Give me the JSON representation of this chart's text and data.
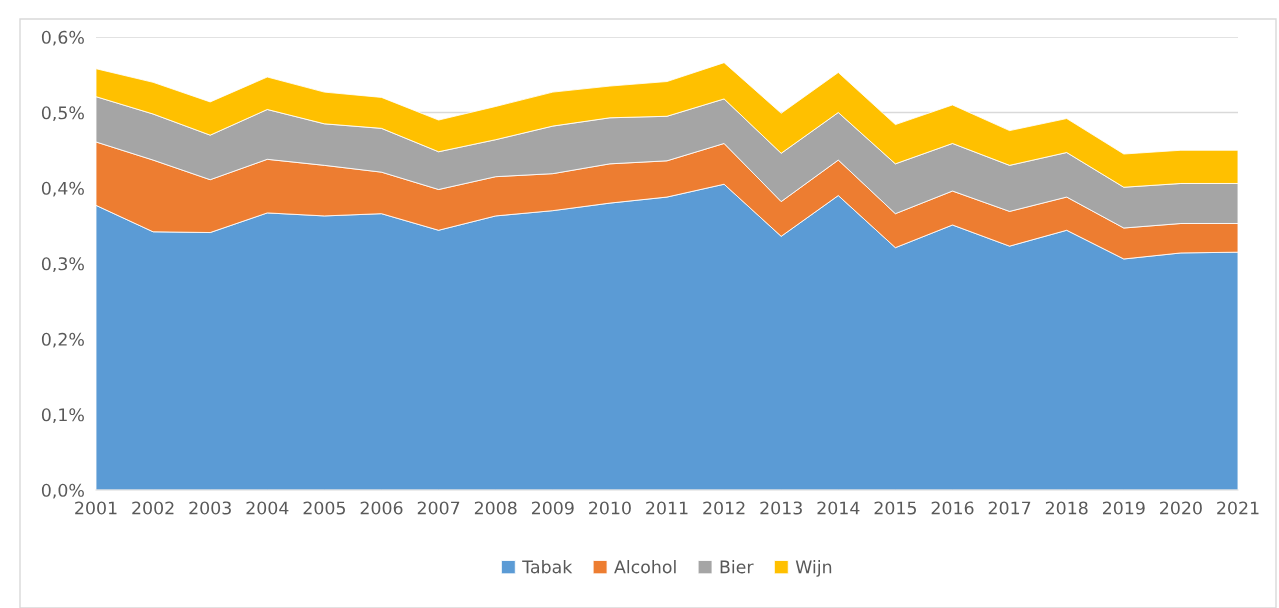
{
  "chart_data": {
    "type": "area",
    "stacked": true,
    "categories": [
      "2001",
      "2002",
      "2003",
      "2004",
      "2005",
      "2006",
      "2007",
      "2008",
      "2009",
      "2010",
      "2011",
      "2012",
      "2013",
      "2014",
      "2015",
      "2016",
      "2017",
      "2018",
      "2019",
      "2020",
      "2021"
    ],
    "series": [
      {
        "name": "Tabak",
        "color": "#5b9bd5",
        "values": [
          0.377,
          0.342,
          0.341,
          0.367,
          0.363,
          0.366,
          0.344,
          0.363,
          0.37,
          0.38,
          0.388,
          0.405,
          0.336,
          0.39,
          0.321,
          0.351,
          0.323,
          0.344,
          0.306,
          0.314,
          0.315
        ]
      },
      {
        "name": "Alcohol",
        "color": "#ed7d31",
        "values": [
          0.084,
          0.095,
          0.07,
          0.071,
          0.067,
          0.055,
          0.054,
          0.052,
          0.049,
          0.052,
          0.048,
          0.054,
          0.046,
          0.047,
          0.045,
          0.045,
          0.046,
          0.044,
          0.041,
          0.039,
          0.038
        ]
      },
      {
        "name": "Bier",
        "color": "#a5a5a5",
        "values": [
          0.06,
          0.061,
          0.059,
          0.066,
          0.055,
          0.058,
          0.05,
          0.049,
          0.063,
          0.061,
          0.059,
          0.059,
          0.064,
          0.063,
          0.066,
          0.063,
          0.061,
          0.059,
          0.054,
          0.053,
          0.053
        ]
      },
      {
        "name": "Wijn",
        "color": "#ffc000",
        "values": [
          0.037,
          0.042,
          0.044,
          0.043,
          0.042,
          0.041,
          0.042,
          0.044,
          0.045,
          0.042,
          0.046,
          0.048,
          0.053,
          0.053,
          0.052,
          0.051,
          0.046,
          0.045,
          0.044,
          0.044,
          0.044
        ]
      }
    ],
    "ylim": [
      0,
      0.6
    ],
    "yticks": [
      {
        "value": 0,
        "label": "0,0%"
      },
      {
        "value": 0.1,
        "label": "0,1%"
      },
      {
        "value": 0.2,
        "label": "0,2%"
      },
      {
        "value": 0.3,
        "label": "0,3%"
      },
      {
        "value": 0.4,
        "label": "0,4%"
      },
      {
        "value": 0.5,
        "label": "0,5%"
      },
      {
        "value": 0.6,
        "label": "0,6%"
      }
    ],
    "grid": "y",
    "legend": "bottom"
  }
}
